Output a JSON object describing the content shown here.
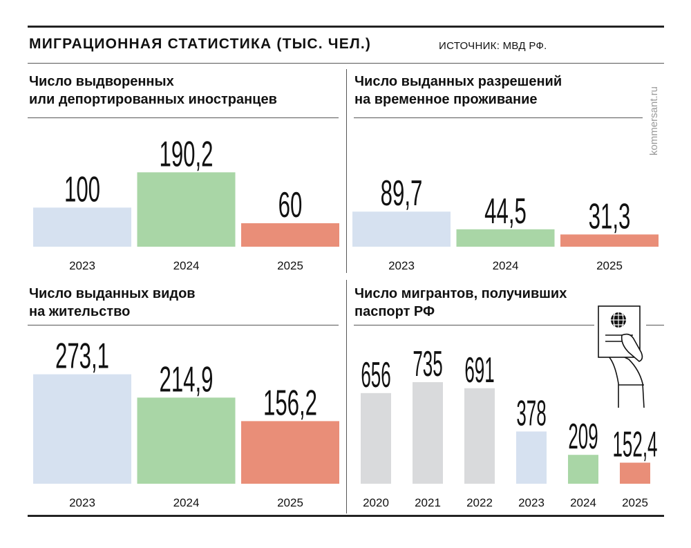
{
  "header": {
    "title": "МИГРАЦИОННАЯ СТАТИСТИКА (ТЫС. ЧЕЛ.)",
    "source": "ИСТОЧНИК: МВД РФ.",
    "brand": "kommersant.ru"
  },
  "colors": {
    "y2023": "#d6e1f0",
    "y2024": "#a9d6a6",
    "y2025": "#e98e78",
    "earlier": "#d9dadc"
  },
  "chart_data": [
    {
      "type": "bar",
      "title": [
        "Число выдворенных",
        "или депортированных иностранцев"
      ],
      "categories": [
        "2023",
        "2024",
        "2025"
      ],
      "values": [
        100,
        190.2,
        60
      ],
      "labels": [
        "100",
        "190,2",
        "60"
      ]
    },
    {
      "type": "bar",
      "title": [
        "Число выданных разрешений",
        "на временное проживание"
      ],
      "categories": [
        "2023",
        "2024",
        "2025"
      ],
      "values": [
        89.7,
        44.5,
        31.3
      ],
      "labels": [
        "89,7",
        "44,5",
        "31,3"
      ]
    },
    {
      "type": "bar",
      "title": [
        "Число выданных видов",
        "на жительство"
      ],
      "categories": [
        "2023",
        "2024",
        "2025"
      ],
      "values": [
        273.1,
        214.9,
        156.2
      ],
      "labels": [
        "273,1",
        "214,9",
        "156,2"
      ]
    },
    {
      "type": "bar",
      "title": [
        "Число мигрантов, получивших",
        "паспорт РФ"
      ],
      "categories": [
        "2020",
        "2021",
        "2022",
        "2023",
        "2024",
        "2025"
      ],
      "values": [
        656,
        735,
        691,
        378,
        209,
        152.4
      ],
      "labels": [
        "656",
        "735",
        "691",
        "378",
        "209",
        "152,4"
      ],
      "icon": "hand-holding-passport-icon"
    }
  ]
}
